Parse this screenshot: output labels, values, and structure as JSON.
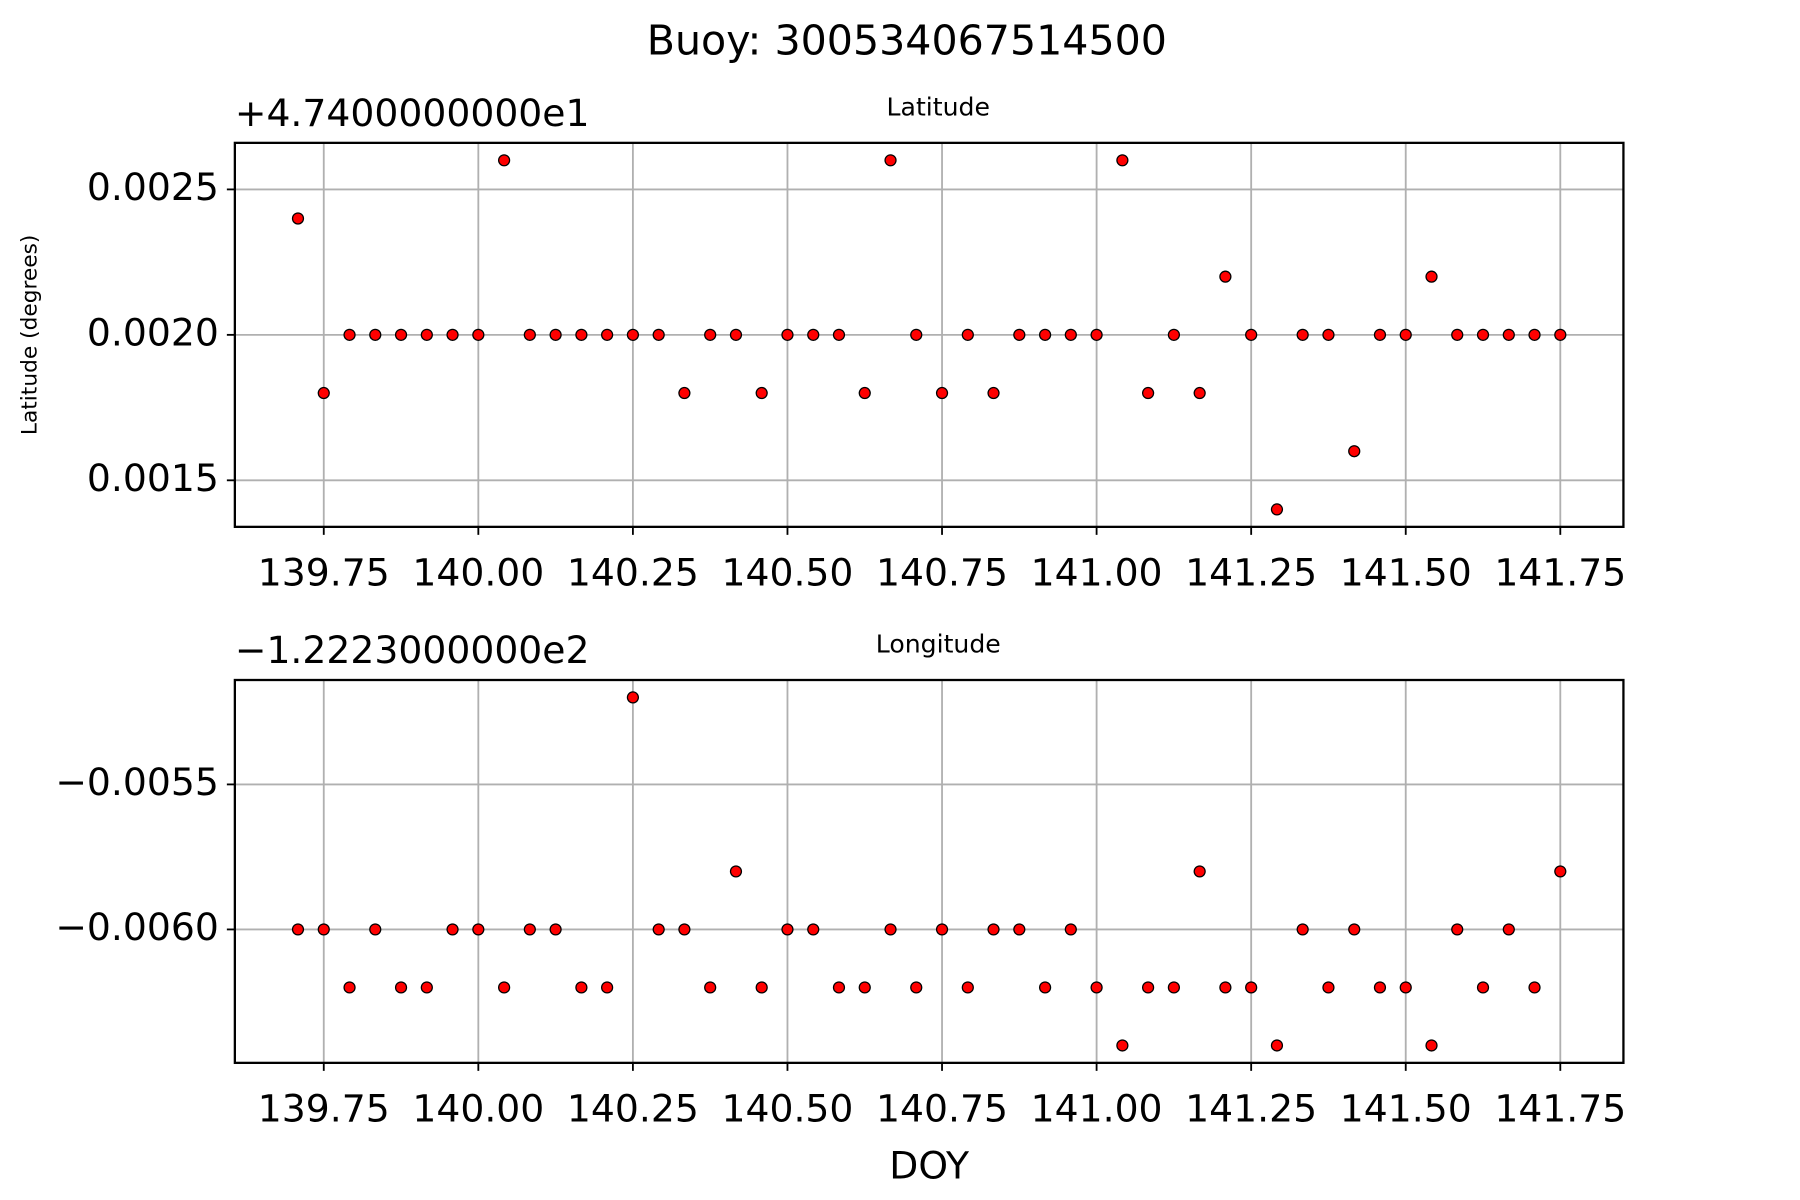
{
  "title": "Buoy: 300534067514500",
  "chart_data": [
    {
      "type": "scatter",
      "title": "Latitude",
      "y_label": "Latitude (degrees)",
      "offset_label": "+4.7400000000e1",
      "color": "#ff0000",
      "edge_color": "#000000",
      "grid": true,
      "x": [
        139.7083,
        139.75,
        139.7917,
        139.8333,
        139.875,
        139.9167,
        139.9583,
        140.0,
        140.0417,
        140.0833,
        140.125,
        140.1667,
        140.2083,
        140.25,
        140.2917,
        140.3333,
        140.375,
        140.4167,
        140.4583,
        140.5,
        140.5417,
        140.5833,
        140.625,
        140.6667,
        140.7083,
        140.75,
        140.7917,
        140.8333,
        140.875,
        140.9167,
        140.9583,
        141.0,
        141.0417,
        141.0833,
        141.125,
        141.1667,
        141.2083,
        141.25,
        141.2917,
        141.3333,
        141.375,
        141.4167,
        141.4583,
        141.5,
        141.5417,
        141.5833,
        141.625,
        141.6667,
        141.7083,
        141.75
      ],
      "values": [
        0.0024,
        0.0018,
        0.002,
        0.002,
        0.002,
        0.002,
        0.002,
        0.002,
        0.0026,
        0.002,
        0.002,
        0.002,
        0.002,
        0.002,
        0.002,
        0.0018,
        0.002,
        0.002,
        0.0018,
        0.002,
        0.002,
        0.002,
        0.0018,
        0.0026,
        0.002,
        0.0018,
        0.002,
        0.0018,
        0.002,
        0.002,
        0.002,
        0.002,
        0.0026,
        0.0018,
        0.002,
        0.0018,
        0.0022,
        0.002,
        0.0014,
        0.002,
        0.002,
        0.0016,
        0.002,
        0.002,
        0.0022,
        0.002,
        0.002,
        0.002,
        0.002,
        0.002
      ],
      "xlim": [
        139.6062,
        141.8521
      ],
      "ylim": [
        0.00134,
        0.00266
      ],
      "xticks": [
        139.75,
        {
          "value": 140.0,
          "label": "140.00"
        },
        140.25,
        {
          "value": 140.5,
          "label": "140.50"
        },
        140.75,
        {
          "value": 141.0,
          "label": "141.00"
        },
        141.25,
        {
          "value": 141.5,
          "label": "141.50"
        },
        141.75
      ],
      "yticks": [
        0.0015,
        {
          "value": 0.002,
          "label": "0.0020"
        },
        0.0025
      ]
    },
    {
      "type": "scatter",
      "title": "Longitude",
      "x_label": "DOY",
      "offset_label": "−1.2223000000e2",
      "color": "#ff0000",
      "edge_color": "#000000",
      "grid": true,
      "x": [
        139.7083,
        139.75,
        139.7917,
        139.8333,
        139.875,
        139.9167,
        139.9583,
        140.0,
        140.0417,
        140.0833,
        140.125,
        140.1667,
        140.2083,
        140.25,
        140.2917,
        140.3333,
        140.375,
        140.4167,
        140.4583,
        140.5,
        140.5417,
        140.5833,
        140.625,
        140.6667,
        140.7083,
        140.75,
        140.7917,
        140.8333,
        140.875,
        140.9167,
        140.9583,
        141.0,
        141.0417,
        141.0833,
        141.125,
        141.1667,
        141.2083,
        141.25,
        141.2917,
        141.3333,
        141.375,
        141.4167,
        141.4583,
        141.5,
        141.5417,
        141.5833,
        141.625,
        141.6667,
        141.7083,
        141.75
      ],
      "values": [
        -0.006,
        -0.006,
        -0.0062,
        -0.006,
        -0.0062,
        -0.0062,
        -0.006,
        -0.006,
        -0.0062,
        -0.006,
        -0.006,
        -0.0062,
        -0.0062,
        -0.0052,
        -0.006,
        -0.006,
        -0.0062,
        -0.0058,
        -0.0062,
        -0.006,
        -0.006,
        -0.0062,
        -0.0062,
        -0.006,
        -0.0062,
        -0.006,
        -0.0062,
        -0.006,
        -0.006,
        -0.0062,
        -0.006,
        -0.0062,
        -0.0064,
        -0.0062,
        -0.0062,
        -0.0058,
        -0.0062,
        -0.0062,
        -0.0064,
        -0.006,
        -0.0062,
        -0.006,
        -0.0062,
        -0.0062,
        -0.0064,
        -0.006,
        -0.0062,
        -0.006,
        -0.0062,
        -0.0058
      ],
      "xlim": [
        139.6062,
        141.8521
      ],
      "ylim": [
        -0.00646,
        -0.00514
      ],
      "xticks": [
        139.75,
        {
          "value": 140.0,
          "label": "140.00"
        },
        140.25,
        {
          "value": 140.5,
          "label": "140.50"
        },
        140.75,
        {
          "value": 141.0,
          "label": "141.00"
        },
        141.25,
        {
          "value": 141.5,
          "label": "141.50"
        },
        141.75
      ],
      "yticks": [
        {
          "value": -0.006,
          "label": "−0.0060"
        },
        {
          "value": -0.0055,
          "label": "−0.0055"
        }
      ]
    }
  ]
}
